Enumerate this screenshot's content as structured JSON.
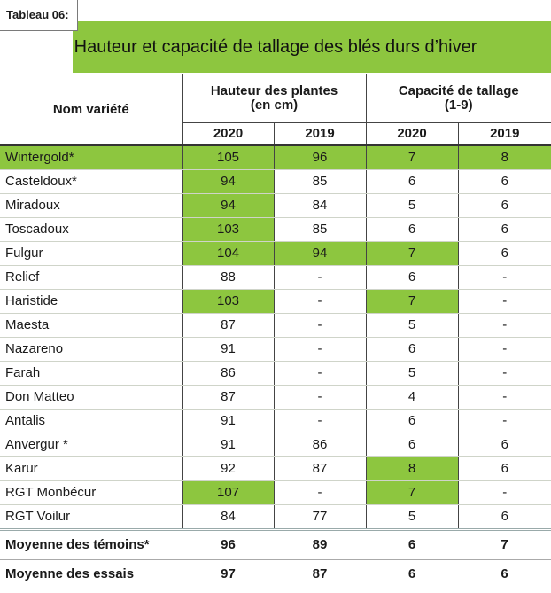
{
  "label": "Tableau 06:",
  "title": "Hauteur et capacité de tallage des blés durs d’hiver",
  "header": {
    "name_col": "Nom variété",
    "height_group": "Hauteur des plantes (en cm)",
    "height_group_l1": "Hauteur des plantes",
    "height_group_l2": "(en cm)",
    "tiller_group_l1": "Capacité de tallage",
    "tiller_group_l2": "(1-9)",
    "years": [
      "2020",
      "2019",
      "2020",
      "2019"
    ]
  },
  "rows": [
    {
      "name": "Wintergold*",
      "h2020": "105",
      "h2019": "96",
      "t2020": "7",
      "t2019": "8"
    },
    {
      "name": "Casteldoux*",
      "h2020": "94",
      "h2019": "85",
      "t2020": "6",
      "t2019": "6"
    },
    {
      "name": "Miradoux",
      "h2020": "94",
      "h2019": "84",
      "t2020": "5",
      "t2019": "6"
    },
    {
      "name": "Toscadoux",
      "h2020": "103",
      "h2019": "85",
      "t2020": "6",
      "t2019": "6"
    },
    {
      "name": "Fulgur",
      "h2020": "104",
      "h2019": "94",
      "t2020": "7",
      "t2019": "6"
    },
    {
      "name": "Relief",
      "h2020": "88",
      "h2019": "-",
      "t2020": "6",
      "t2019": "-"
    },
    {
      "name": "Haristide",
      "h2020": "103",
      "h2019": "-",
      "t2020": "7",
      "t2019": "-"
    },
    {
      "name": "Maesta",
      "h2020": "87",
      "h2019": "-",
      "t2020": "5",
      "t2019": "-"
    },
    {
      "name": "Nazareno",
      "h2020": "91",
      "h2019": "-",
      "t2020": "6",
      "t2019": "-"
    },
    {
      "name": "Farah",
      "h2020": "86",
      "h2019": "-",
      "t2020": "5",
      "t2019": "-"
    },
    {
      "name": "Don Matteo",
      "h2020": "87",
      "h2019": "-",
      "t2020": "4",
      "t2019": "-"
    },
    {
      "name": "Antalis",
      "h2020": "91",
      "h2019": "-",
      "t2020": "6",
      "t2019": "-"
    },
    {
      "name": "Anvergur *",
      "h2020": "91",
      "h2019": "86",
      "t2020": "6",
      "t2019": "6"
    },
    {
      "name": "Karur",
      "h2020": "92",
      "h2019": "87",
      "t2020": "8",
      "t2019": "6"
    },
    {
      "name": "RGT Monbécur",
      "h2020": "107",
      "h2019": "-",
      "t2020": "7",
      "t2019": "-"
    },
    {
      "name": "RGT Voilur",
      "h2020": "84",
      "h2019": "77",
      "t2020": "5",
      "t2019": "6"
    }
  ],
  "summary": [
    {
      "name": "Moyenne des témoins*",
      "h2020": "96",
      "h2019": "89",
      "t2020": "6",
      "t2019": "7"
    },
    {
      "name": "Moyenne des essais",
      "h2020": "97",
      "h2019": "87",
      "t2020": "6",
      "t2019": "6"
    }
  ],
  "highlight": {
    "color": "#8dc63f",
    "cells": {
      "0": [
        "name",
        "h2020",
        "h2019",
        "t2020",
        "t2019"
      ],
      "1": [
        "h2020"
      ],
      "2": [
        "h2020"
      ],
      "3": [
        "h2020"
      ],
      "4": [
        "h2020",
        "h2019",
        "t2020"
      ],
      "6": [
        "h2020",
        "t2020"
      ],
      "13": [
        "t2020"
      ],
      "14": [
        "h2020",
        "t2020"
      ]
    }
  }
}
